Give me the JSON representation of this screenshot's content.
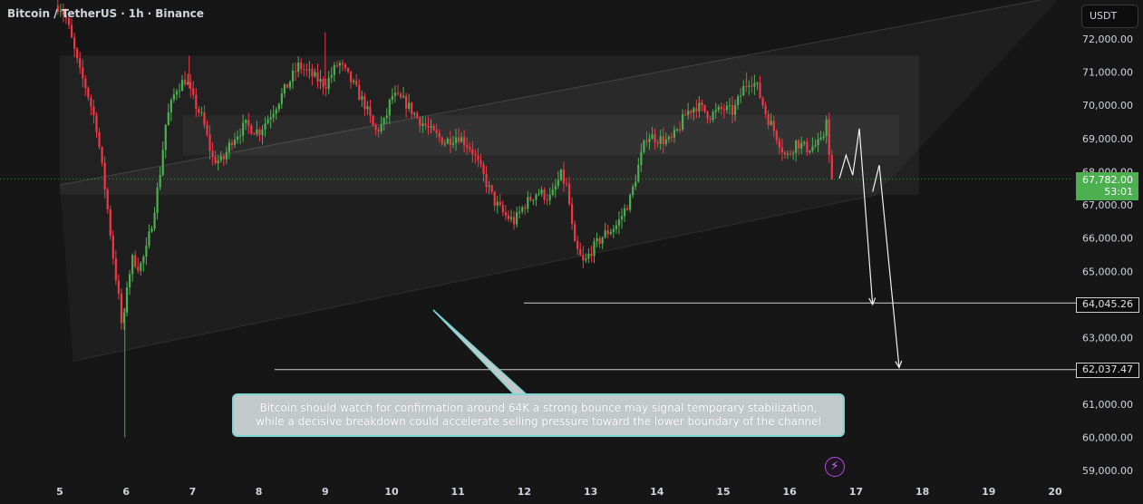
{
  "header": {
    "symbol": "Bitcoin / TetherUS",
    "timeframe": "1h",
    "exchange": "Binance",
    "separator": "·"
  },
  "price_axis": {
    "currency": "USDT",
    "current_price": "67,782.00",
    "countdown": "53:01",
    "level_1": "64,045.26",
    "level_2": "62,037.47"
  },
  "annotation": {
    "line1": "Bitcoin should watch for confirmation around 64K  a strong bounce may signal temporary stabilization,",
    "line2": "while a decisive breakdown could accelerate selling pressure toward the lower boundary of the channel"
  },
  "icons": {
    "lightning": "lightning-icon"
  },
  "colors": {
    "background": "#161616",
    "bullish": "#4caf50",
    "bearish": "#f23645",
    "current_price_tag": "#4caf50",
    "callout_fill": "#c3c9cb",
    "callout_border": "#7fd4d4"
  },
  "chart_data": {
    "type": "candlestick",
    "symbol": "Bitcoin / TetherUS",
    "timeframe": "1h",
    "exchange": "Binance",
    "x_ticks": [
      "5",
      "6",
      "7",
      "8",
      "9",
      "10",
      "11",
      "12",
      "13",
      "14",
      "15",
      "16",
      "17",
      "18",
      "19",
      "20"
    ],
    "y_ticks": [
      59000,
      60000,
      61000,
      62000,
      63000,
      64000,
      65000,
      66000,
      67000,
      68000,
      69000,
      70000,
      71000,
      72000
    ],
    "y_tick_labels": [
      "59,000.00",
      "60,000.00",
      "61,000.00",
      "62,000.00",
      "63,000.00",
      "64,000.00",
      "65,000.00",
      "66,000.00",
      "67,000.00",
      "68,000.00",
      "69,000.00",
      "70,000.00",
      "71,000.00",
      "72,000.00"
    ],
    "ylim": [
      58800,
      72600
    ],
    "xlim": [
      4.95,
      20.1
    ],
    "current_price": 67782.0,
    "price_lines": [
      64045.26,
      62037.47
    ],
    "price_path": [
      [
        5.0,
        73000
      ],
      [
        5.1,
        72600
      ],
      [
        5.2,
        71800
      ],
      [
        5.3,
        71000
      ],
      [
        5.4,
        70500
      ],
      [
        5.55,
        69400
      ],
      [
        5.7,
        67200
      ],
      [
        5.8,
        65500
      ],
      [
        5.9,
        64000
      ],
      [
        5.95,
        63000
      ],
      [
        6.0,
        64500
      ],
      [
        6.1,
        65400
      ],
      [
        6.2,
        65100
      ],
      [
        6.3,
        65600
      ],
      [
        6.4,
        66600
      ],
      [
        6.5,
        67800
      ],
      [
        6.6,
        69500
      ],
      [
        6.75,
        70500
      ],
      [
        6.9,
        70800
      ],
      [
        7.0,
        70200
      ],
      [
        7.15,
        69600
      ],
      [
        7.3,
        68400
      ],
      [
        7.45,
        68300
      ],
      [
        7.6,
        69000
      ],
      [
        7.8,
        69400
      ],
      [
        8.0,
        69200
      ],
      [
        8.2,
        69800
      ],
      [
        8.4,
        70500
      ],
      [
        8.6,
        71200
      ],
      [
        8.8,
        70900
      ],
      [
        9.0,
        70600
      ],
      [
        9.2,
        71300
      ],
      [
        9.4,
        70700
      ],
      [
        9.6,
        70000
      ],
      [
        9.75,
        69200
      ],
      [
        9.9,
        69500
      ],
      [
        10.0,
        70300
      ],
      [
        10.2,
        70100
      ],
      [
        10.4,
        69600
      ],
      [
        10.6,
        69200
      ],
      [
        10.8,
        68900
      ],
      [
        11.0,
        69100
      ],
      [
        11.2,
        68700
      ],
      [
        11.4,
        67800
      ],
      [
        11.55,
        67100
      ],
      [
        11.7,
        66700
      ],
      [
        11.85,
        66500
      ],
      [
        12.0,
        67000
      ],
      [
        12.2,
        67400
      ],
      [
        12.4,
        67200
      ],
      [
        12.55,
        67900
      ],
      [
        12.65,
        67500
      ],
      [
        12.75,
        65800
      ],
      [
        12.9,
        65200
      ],
      [
        13.0,
        65600
      ],
      [
        13.2,
        66100
      ],
      [
        13.4,
        66400
      ],
      [
        13.6,
        67200
      ],
      [
        13.75,
        68400
      ],
      [
        13.85,
        69100
      ],
      [
        14.0,
        69000
      ],
      [
        14.2,
        68900
      ],
      [
        14.3,
        69200
      ],
      [
        14.45,
        69800
      ],
      [
        14.6,
        70000
      ],
      [
        14.8,
        69700
      ],
      [
        15.0,
        69900
      ],
      [
        15.15,
        69800
      ],
      [
        15.3,
        70500
      ],
      [
        15.4,
        70800
      ],
      [
        15.5,
        70600
      ],
      [
        15.65,
        69700
      ],
      [
        15.8,
        69100
      ],
      [
        15.95,
        68400
      ],
      [
        16.1,
        68900
      ],
      [
        16.25,
        68700
      ],
      [
        16.4,
        68800
      ],
      [
        16.5,
        68900
      ],
      [
        16.55,
        69800
      ],
      [
        16.6,
        68300
      ],
      [
        16.65,
        67782
      ]
    ],
    "wick_extremes": [
      [
        5.98,
        60000
      ],
      [
        9.0,
        72200
      ],
      [
        6.95,
        71500
      ],
      [
        15.35,
        71000
      ]
    ],
    "horizontal_zones": [
      {
        "from": 5.0,
        "to": 17.95,
        "low": 67300,
        "high": 71500
      },
      {
        "from": 6.85,
        "to": 17.65,
        "low": 68500,
        "high": 69700
      }
    ],
    "channel": {
      "upper": [
        [
          5.0,
          67600
        ],
        [
          20.1,
          73300
        ]
      ],
      "lower": [
        [
          5.2,
          62300
        ],
        [
          17.3,
          67300
        ]
      ]
    },
    "projection_paths": [
      [
        [
          16.75,
          67800
        ],
        [
          16.85,
          68500
        ],
        [
          16.95,
          67900
        ],
        [
          17.05,
          69300
        ],
        [
          17.25,
          64000
        ]
      ],
      [
        [
          17.25,
          67400
        ],
        [
          17.35,
          68200
        ],
        [
          17.65,
          62100
        ]
      ]
    ]
  }
}
